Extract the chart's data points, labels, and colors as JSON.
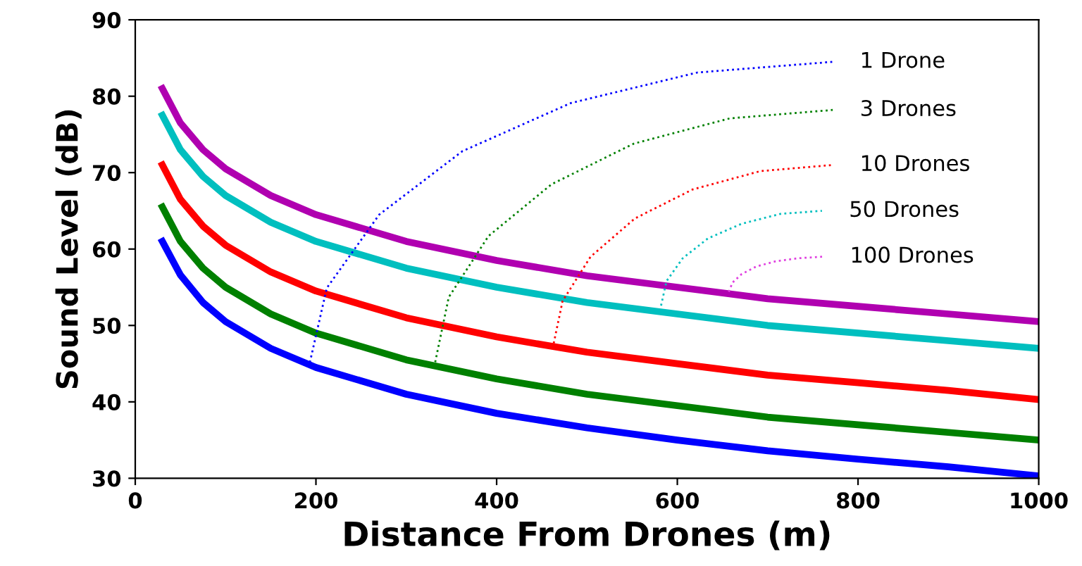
{
  "chart_data": {
    "type": "line",
    "xlabel": "Distance From Drones (m)",
    "ylabel": "Sound Level (dB)",
    "xlim": [
      0,
      1000
    ],
    "ylim": [
      30,
      90
    ],
    "xticks": [
      0,
      200,
      400,
      600,
      800,
      1000
    ],
    "yticks": [
      30,
      40,
      50,
      60,
      70,
      80,
      90
    ],
    "grid": false,
    "legend": false,
    "line_style": "solid",
    "x": [
      30,
      50,
      75,
      100,
      150,
      200,
      300,
      400,
      500,
      600,
      700,
      800,
      900,
      1000
    ],
    "series": [
      {
        "color": "#0000ff",
        "values": [
          61,
          56.6,
          53,
          50.5,
          47,
          44.5,
          41,
          38.5,
          36.6,
          35,
          33.6,
          32.5,
          31.5,
          30.3
        ]
      },
      {
        "color": "#008000",
        "values": [
          65.5,
          61,
          57.5,
          55,
          51.5,
          49,
          45.5,
          43,
          41,
          39.5,
          38,
          37,
          36,
          35
        ]
      },
      {
        "color": "#ff0000",
        "values": [
          71,
          66.5,
          63,
          60.5,
          57,
          54.5,
          51,
          48.5,
          46.5,
          45,
          43.5,
          42.5,
          41.5,
          40.3
        ]
      },
      {
        "color": "#00bfbf",
        "values": [
          77.5,
          73,
          69.5,
          67,
          63.5,
          61,
          57.5,
          55,
          53,
          51.5,
          50,
          49,
          48,
          47
        ]
      },
      {
        "color": "#b000b0",
        "values": [
          81,
          76.5,
          73,
          70.5,
          67,
          64.5,
          61,
          58.5,
          56.5,
          55,
          53.5,
          52.5,
          51.5,
          50.5
        ]
      },
      {
        "name": "1 Drone",
        "color": "#0000ff",
        "line_style": "dotted",
        "x": [
          192,
          212,
          270,
          362,
          482,
          622,
          772
        ],
        "values": [
          44.5,
          54.9,
          64.5,
          72.8,
          79.1,
          83.1,
          84.5
        ]
      },
      {
        "name": "3 Drones",
        "color": "#008000",
        "line_style": "dotted",
        "x": [
          332,
          347,
          391,
          461,
          552,
          658,
          772
        ],
        "values": [
          45.2,
          53.7,
          61.7,
          68.5,
          73.8,
          77.1,
          78.2
        ]
      },
      {
        "name": "10 Drones",
        "color": "#ff0000",
        "line_style": "dotted",
        "x": [
          462,
          473,
          504,
          553,
          617,
          692,
          772
        ],
        "values": [
          47,
          53.2,
          59,
          64,
          67.8,
          70.2,
          71
        ]
      },
      {
        "name": "50 Drones",
        "color": "#00bfbf",
        "line_style": "dotted",
        "x": [
          582,
          588,
          606,
          634,
          671,
          714,
          760
        ],
        "values": [
          52.6,
          55.8,
          58.8,
          61.4,
          63.3,
          64.6,
          65
        ]
      },
      {
        "name": "100 Drones",
        "color": "#e040e0",
        "line_style": "dotted",
        "x": [
          657,
          661,
          671,
          687,
          709,
          734,
          761
        ],
        "values": [
          54.4,
          55.6,
          56.7,
          57.7,
          58.4,
          58.8,
          59
        ]
      }
    ]
  }
}
